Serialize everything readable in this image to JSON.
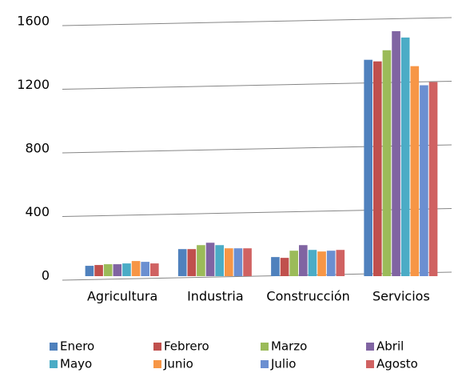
{
  "chart_data": {
    "type": "bar",
    "categories": [
      "Agricultura",
      "Industria",
      "Construcción",
      "Servicios"
    ],
    "series": [
      {
        "name": "Enero",
        "color": "#4f81bd",
        "values": [
          65,
          170,
          120,
          1360
        ]
      },
      {
        "name": "Febrero",
        "color": "#c0504d",
        "values": [
          70,
          170,
          115,
          1350
        ]
      },
      {
        "name": "Marzo",
        "color": "#9bbb59",
        "values": [
          75,
          195,
          160,
          1420
        ]
      },
      {
        "name": "Abril",
        "color": "#8064a2",
        "values": [
          75,
          210,
          195,
          1540
        ]
      },
      {
        "name": "Mayo",
        "color": "#4bacc6",
        "values": [
          80,
          195,
          165,
          1500
        ]
      },
      {
        "name": "Junio",
        "color": "#f79646",
        "values": [
          95,
          175,
          155,
          1320
        ]
      },
      {
        "name": "Julio",
        "color": "#6b8fd1",
        "values": [
          90,
          175,
          160,
          1200
        ]
      },
      {
        "name": "Agosto",
        "color": "#d06262",
        "values": [
          80,
          175,
          165,
          1220
        ]
      }
    ],
    "ylim": [
      0,
      1600
    ],
    "yticks": [
      0,
      400,
      800,
      1200,
      1600
    ],
    "grid": true,
    "legend": "bottom"
  }
}
